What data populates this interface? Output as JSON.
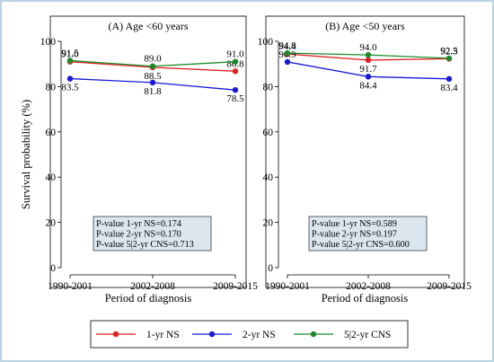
{
  "colors": {
    "figure_border": "#b9d3e3",
    "panel_bg": "#ffffff",
    "stat_box_bg": "#dce6ef",
    "one_yr": "#e02020",
    "two_yr": "#1a1ad6",
    "five_yr": "#1a8a2a"
  },
  "y_axis_title": "Survival probability (%)",
  "x_axis_title": "Period of diagnosis",
  "chart_data": [
    {
      "type": "line",
      "title": "(A) Age <60 years",
      "categories": [
        "1990-2001",
        "2002-2008",
        "2009-2015"
      ],
      "ylim": [
        0,
        100
      ],
      "yticks": [
        0,
        20,
        40,
        60,
        80,
        100
      ],
      "series": [
        {
          "name": "1-yr NS",
          "values": [
            91.0,
            88.5,
            86.8
          ],
          "labels": [
            "91.0",
            "88.5",
            "86.8"
          ]
        },
        {
          "name": "2-yr NS",
          "values": [
            83.5,
            81.8,
            78.5
          ],
          "labels": [
            "83.5",
            "81.8",
            "78.5"
          ]
        },
        {
          "name": "5|2-yr CNS",
          "values": [
            91.5,
            89.0,
            91.0
          ],
          "labels": [
            "91.5",
            "89.0",
            "91.0"
          ]
        }
      ],
      "annotation": [
        "P-value 1-yr NS=0.174",
        "P-value 2-yr NS=0.170",
        "P-value 5|2-yr CNS=0.713"
      ]
    },
    {
      "type": "line",
      "title": "(B) Age <50 years",
      "categories": [
        "1990-2001",
        "2002-2008",
        "2009-2015"
      ],
      "ylim": [
        0,
        100
      ],
      "yticks": [
        0,
        20,
        40,
        60,
        80,
        100
      ],
      "series": [
        {
          "name": "1-yr NS",
          "values": [
            94.4,
            91.7,
            92.3
          ],
          "labels": [
            "94.4",
            "91.7",
            "92.3"
          ]
        },
        {
          "name": "2-yr NS",
          "values": [
            90.9,
            84.4,
            83.4
          ],
          "labels": [
            "90.9",
            "84.4",
            "83.4"
          ]
        },
        {
          "name": "5|2-yr CNS",
          "values": [
            94.8,
            94.0,
            92.5
          ],
          "labels": [
            "94.8",
            "94.0",
            "92.5"
          ]
        }
      ],
      "annotation": [
        "P-value 1-yr NS=0.589",
        "P-value 2-yr NS=0.197",
        "P-value 5|2-yr CNS=0.600"
      ]
    }
  ],
  "legend": {
    "placement": "bottom",
    "items": [
      {
        "label": "1-yr NS",
        "series": "one_yr"
      },
      {
        "label": "2-yr NS",
        "series": "two_yr"
      },
      {
        "label": "5|2-yr CNS",
        "series": "five_yr"
      }
    ]
  }
}
